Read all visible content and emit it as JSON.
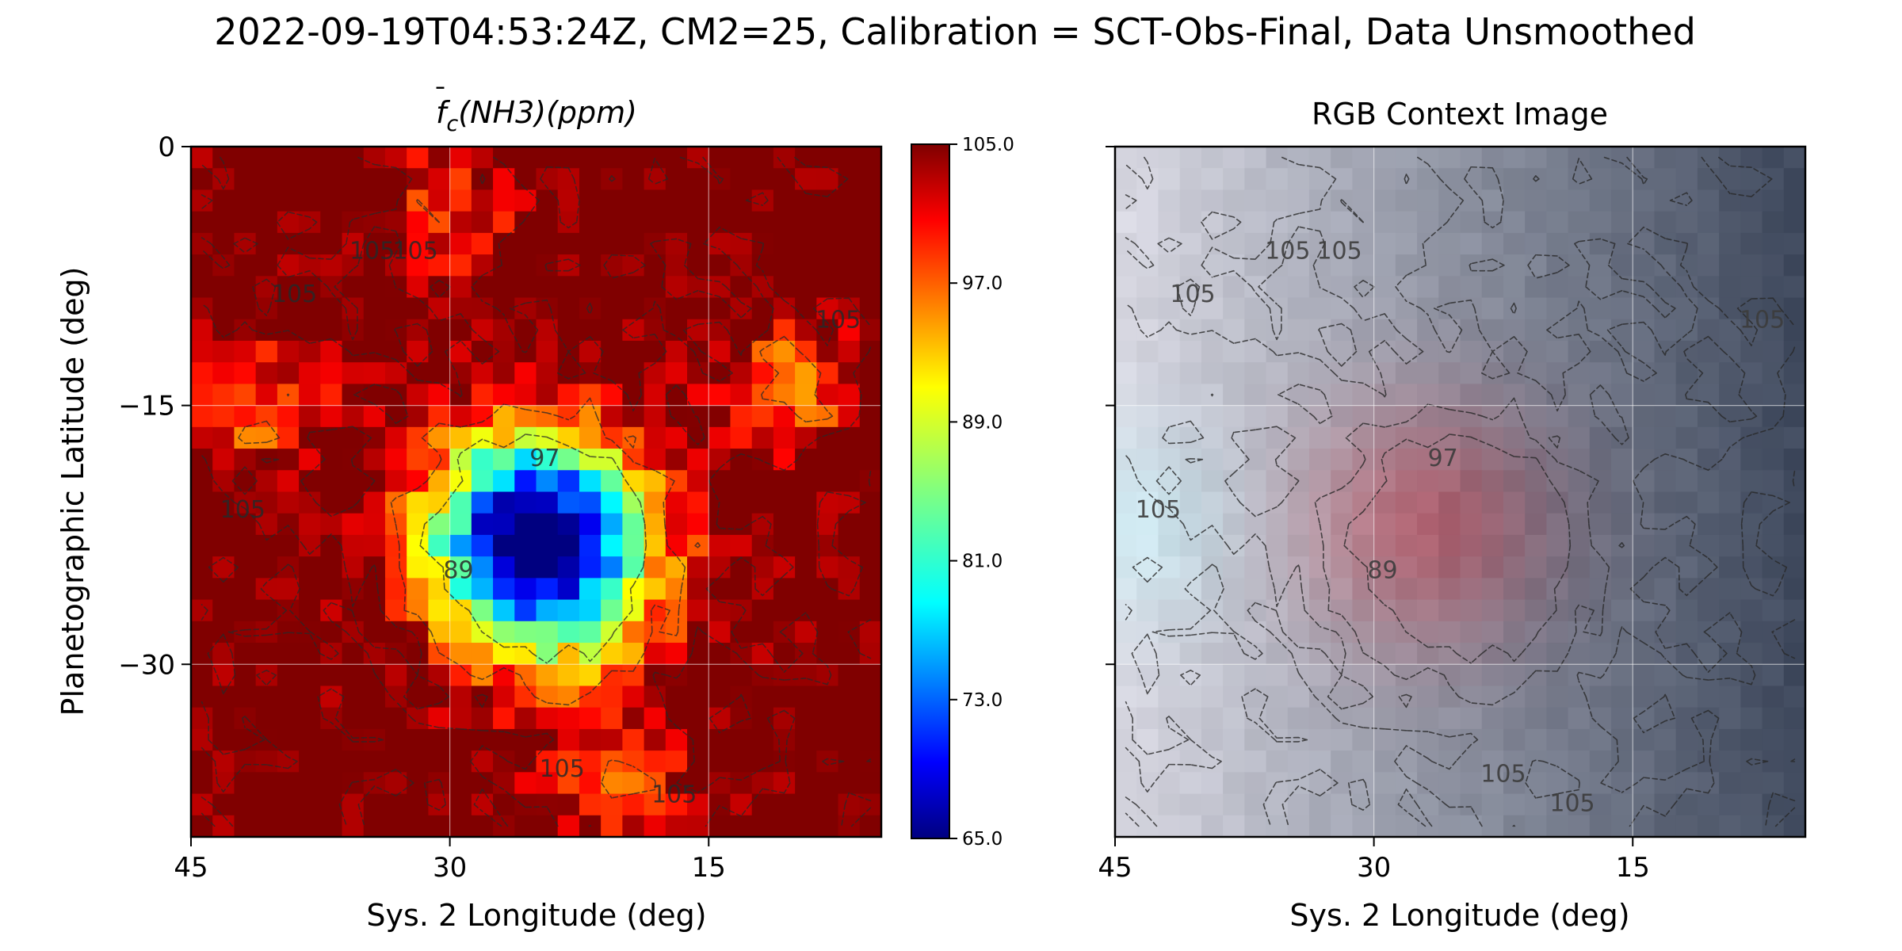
{
  "figure": {
    "title": "2022-09-19T04:53:24Z, CM2=25, Calibration = SCT-Obs-Final, Data Unsmoothed"
  },
  "chart_data": [
    {
      "type": "heatmap",
      "title_base": "f",
      "title_sub": "c",
      "title_rest": "(NH3)(ppm)",
      "xlabel": "Sys. 2 Longitude (deg)",
      "ylabel": "Planetographic Latitude (deg)",
      "xlim": [
        45,
        5
      ],
      "ylim": [
        -40,
        0
      ],
      "x_ticks": [
        {
          "value": 45,
          "label": "45"
        },
        {
          "value": 30,
          "label": "30"
        },
        {
          "value": 15,
          "label": "15"
        }
      ],
      "y_ticks": [
        {
          "value": 0,
          "label": "0"
        },
        {
          "value": -15,
          "label": "−15"
        },
        {
          "value": -30,
          "label": "−30"
        }
      ],
      "grid": true,
      "colorbar": {
        "min": 65.0,
        "max": 105.0,
        "colormap": "jet",
        "ticks": [
          {
            "value": 105,
            "label": "105.0"
          },
          {
            "value": 97,
            "label": "97.0"
          },
          {
            "value": 89,
            "label": "89.0"
          },
          {
            "value": 81,
            "label": "81.0"
          },
          {
            "value": 73,
            "label": "73.0"
          },
          {
            "value": 65,
            "label": "65.0"
          }
        ]
      },
      "contour_levels": [
        89,
        97,
        105
      ],
      "contour_labels": [
        {
          "x": 34.5,
          "y": -6.5,
          "text": "105"
        },
        {
          "x": 32.0,
          "y": -6.5,
          "text": "105"
        },
        {
          "x": 39.0,
          "y": -9.0,
          "text": "105"
        },
        {
          "x": 42.0,
          "y": -21.5,
          "text": "105"
        },
        {
          "x": 7.5,
          "y": -10.5,
          "text": "105"
        },
        {
          "x": 24.5,
          "y": -18.5,
          "text": "97"
        },
        {
          "x": 29.5,
          "y": -25.0,
          "text": "89"
        },
        {
          "x": 23.5,
          "y": -36.5,
          "text": "105"
        },
        {
          "x": 17.0,
          "y": -38.0,
          "text": "105"
        }
      ],
      "field_blobs": [
        {
          "x": 26,
          "y": -22.5,
          "sx": 4.2,
          "sy": 4.2,
          "depth": 30
        },
        {
          "x": 23,
          "y": -24,
          "sx": 4.5,
          "sy": 5.0,
          "depth": 20
        },
        {
          "x": 10,
          "y": -14,
          "sx": 2.6,
          "sy": 2.4,
          "depth": 13
        },
        {
          "x": 41,
          "y": -15,
          "sx": 3.0,
          "sy": 3.0,
          "depth": 10
        },
        {
          "x": 30,
          "y": -4,
          "sx": 2.5,
          "sy": 3.0,
          "depth": 9
        },
        {
          "x": 20,
          "y": -37,
          "sx": 3.0,
          "sy": 2.0,
          "depth": 9
        }
      ]
    },
    {
      "type": "heatmap",
      "title": "RGB Context Image",
      "xlabel": "Sys. 2 Longitude (deg)",
      "xlim": [
        45,
        5
      ],
      "ylim": [
        -40,
        0
      ],
      "x_ticks": [
        {
          "value": 45,
          "label": "45"
        },
        {
          "value": 30,
          "label": "30"
        },
        {
          "value": 15,
          "label": "15"
        }
      ],
      "y_ticks": [
        {
          "value": 0
        },
        {
          "value": -15
        },
        {
          "value": -30
        }
      ],
      "grid": true,
      "contour_labels": [
        {
          "x": 35.0,
          "y": -6.5,
          "text": "105"
        },
        {
          "x": 32.0,
          "y": -6.5,
          "text": "105"
        },
        {
          "x": 40.5,
          "y": -9.0,
          "text": "105"
        },
        {
          "x": 42.5,
          "y": -21.5,
          "text": "105"
        },
        {
          "x": 7.5,
          "y": -10.5,
          "text": "105"
        },
        {
          "x": 26.0,
          "y": -18.5,
          "text": "97"
        },
        {
          "x": 29.5,
          "y": -25.0,
          "text": "89"
        },
        {
          "x": 22.5,
          "y": -36.8,
          "text": "105"
        },
        {
          "x": 18.5,
          "y": -38.5,
          "text": "105"
        }
      ]
    }
  ]
}
